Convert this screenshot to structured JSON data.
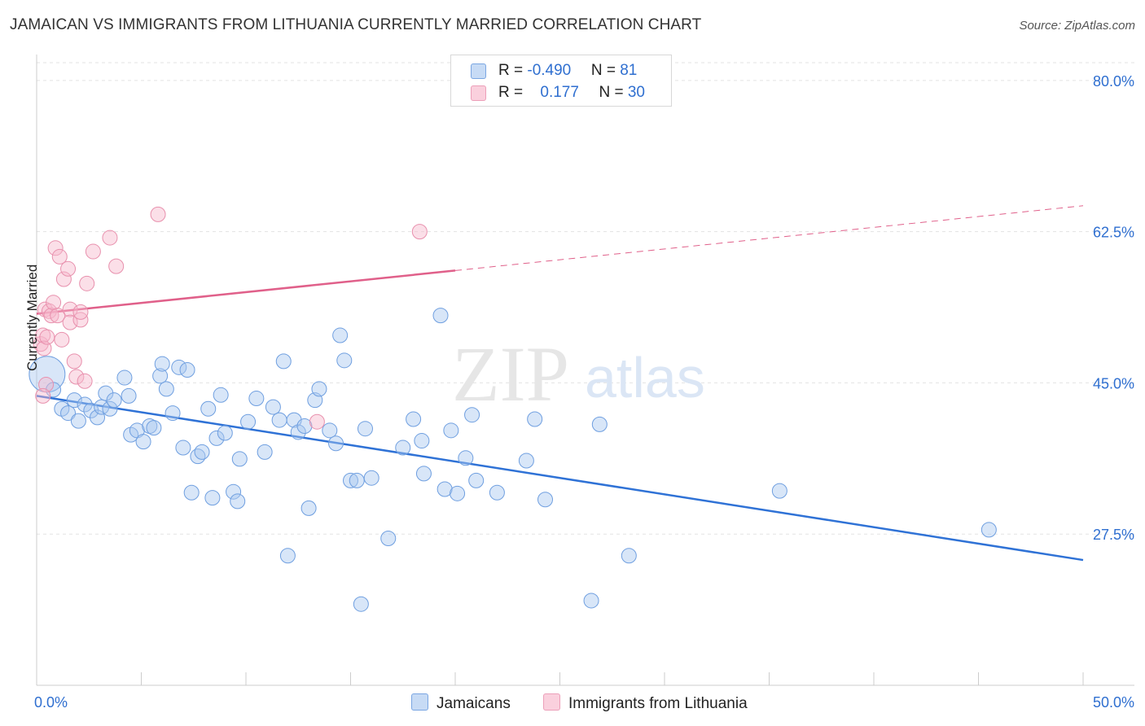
{
  "title": "JAMAICAN VS IMMIGRANTS FROM LITHUANIA CURRENTLY MARRIED CORRELATION CHART",
  "source": "Source: ZipAtlas.com",
  "watermark": {
    "zip": "ZIP",
    "atlas": "atlas"
  },
  "legend": {
    "rows": [
      {
        "r_label": "R = ",
        "r_value": "-0.490",
        "n_label": "N = ",
        "n_value": "81",
        "color": "#a9c8f0"
      },
      {
        "r_label": "R = ",
        "r_value": "0.177",
        "n_label": "N = ",
        "n_value": "30",
        "color": "#f6b8cc"
      }
    ]
  },
  "chart_data": {
    "type": "scatter",
    "title": "JAMAICAN VS IMMIGRANTS FROM LITHUANIA CURRENTLY MARRIED CORRELATION CHART",
    "xlabel": "",
    "ylabel": "Currently Married",
    "xlim": [
      0,
      50
    ],
    "ylim": [
      10,
      83
    ],
    "x_tick_labels": [
      "0.0%",
      "50.0%"
    ],
    "y_ticks": [
      27.5,
      45.0,
      62.5,
      80.0
    ],
    "y_tick_labels": [
      "27.5%",
      "45.0%",
      "62.5%",
      "80.0%"
    ],
    "grid": "horizontal dashed",
    "legend_position": "top-center",
    "series": [
      {
        "name": "Jamaicans",
        "color": "#a9c8f0",
        "stroke": "#6f9fe0",
        "trend": {
          "x": [
            0,
            50
          ],
          "y": [
            43.5,
            24.5
          ],
          "color": "#2f72d6",
          "dashed_from": null
        },
        "points": [
          [
            0.5,
            46.0
          ],
          [
            0.8,
            44.2
          ],
          [
            1.2,
            42.0
          ],
          [
            1.5,
            41.5
          ],
          [
            1.8,
            43.0
          ],
          [
            2.0,
            40.6
          ],
          [
            2.3,
            42.5
          ],
          [
            2.6,
            41.8
          ],
          [
            2.9,
            41.0
          ],
          [
            3.1,
            42.2
          ],
          [
            3.3,
            43.8
          ],
          [
            3.5,
            42.0
          ],
          [
            3.7,
            43.0
          ],
          [
            4.2,
            45.6
          ],
          [
            4.4,
            43.5
          ],
          [
            4.5,
            39.0
          ],
          [
            4.8,
            39.5
          ],
          [
            5.1,
            38.2
          ],
          [
            5.4,
            40.0
          ],
          [
            5.6,
            39.8
          ],
          [
            5.9,
            45.8
          ],
          [
            6.0,
            47.2
          ],
          [
            6.2,
            44.3
          ],
          [
            6.5,
            41.5
          ],
          [
            6.8,
            46.8
          ],
          [
            7.0,
            37.5
          ],
          [
            7.2,
            46.5
          ],
          [
            7.4,
            32.3
          ],
          [
            7.7,
            36.5
          ],
          [
            7.9,
            37.0
          ],
          [
            8.2,
            42.0
          ],
          [
            8.4,
            31.7
          ],
          [
            8.6,
            38.6
          ],
          [
            8.8,
            43.6
          ],
          [
            9.0,
            39.2
          ],
          [
            9.4,
            32.4
          ],
          [
            9.6,
            31.3
          ],
          [
            9.7,
            36.2
          ],
          [
            10.1,
            40.5
          ],
          [
            10.5,
            43.2
          ],
          [
            10.9,
            37.0
          ],
          [
            11.3,
            42.2
          ],
          [
            11.6,
            40.7
          ],
          [
            11.8,
            47.5
          ],
          [
            12.0,
            25.0
          ],
          [
            12.3,
            40.7
          ],
          [
            12.5,
            39.3
          ],
          [
            12.8,
            40.0
          ],
          [
            13.0,
            30.5
          ],
          [
            13.3,
            43.0
          ],
          [
            13.5,
            44.3
          ],
          [
            14.0,
            39.5
          ],
          [
            14.3,
            38.0
          ],
          [
            14.5,
            50.5
          ],
          [
            14.7,
            47.6
          ],
          [
            15.0,
            33.7
          ],
          [
            15.3,
            33.7
          ],
          [
            15.5,
            19.4
          ],
          [
            15.7,
            39.7
          ],
          [
            16.0,
            34.0
          ],
          [
            16.8,
            27.0
          ],
          [
            17.5,
            37.5
          ],
          [
            18.0,
            40.8
          ],
          [
            18.4,
            38.3
          ],
          [
            18.5,
            34.5
          ],
          [
            19.3,
            52.8
          ],
          [
            19.5,
            32.7
          ],
          [
            19.8,
            39.5
          ],
          [
            20.1,
            32.2
          ],
          [
            20.5,
            36.3
          ],
          [
            20.8,
            41.3
          ],
          [
            21.0,
            33.7
          ],
          [
            22.0,
            32.3
          ],
          [
            23.4,
            36.0
          ],
          [
            23.8,
            40.8
          ],
          [
            24.3,
            31.5
          ],
          [
            26.5,
            19.8
          ],
          [
            26.9,
            40.2
          ],
          [
            28.3,
            25.0
          ],
          [
            35.5,
            32.5
          ],
          [
            45.5,
            28.0
          ]
        ]
      },
      {
        "name": "Immigrants from Lithuania",
        "color": "#f6b8cc",
        "stroke": "#e890ad",
        "trend": {
          "x": [
            0,
            20,
            50
          ],
          "y": [
            53.0,
            58.0,
            65.5
          ],
          "color": "#e0608a",
          "dashed_from": 20
        },
        "points": [
          [
            0.2,
            49.5
          ],
          [
            0.3,
            50.5
          ],
          [
            0.35,
            49.0
          ],
          [
            0.4,
            53.5
          ],
          [
            0.45,
            44.8
          ],
          [
            0.5,
            50.3
          ],
          [
            0.6,
            53.3
          ],
          [
            0.7,
            52.8
          ],
          [
            0.8,
            54.3
          ],
          [
            0.9,
            60.6
          ],
          [
            1.0,
            52.8
          ],
          [
            1.1,
            59.6
          ],
          [
            1.2,
            50.0
          ],
          [
            1.3,
            57.0
          ],
          [
            1.5,
            58.2
          ],
          [
            1.6,
            53.5
          ],
          [
            1.6,
            52.0
          ],
          [
            1.8,
            47.5
          ],
          [
            1.9,
            45.7
          ],
          [
            2.1,
            52.3
          ],
          [
            2.1,
            53.2
          ],
          [
            2.3,
            45.2
          ],
          [
            2.4,
            56.5
          ],
          [
            2.7,
            60.2
          ],
          [
            3.5,
            61.8
          ],
          [
            3.8,
            58.5
          ],
          [
            5.8,
            64.5
          ],
          [
            13.4,
            40.5
          ],
          [
            18.3,
            62.5
          ],
          [
            0.3,
            43.5
          ]
        ]
      }
    ]
  },
  "bottom_legend": {
    "items": [
      {
        "label": "Jamaicans",
        "color": "#a9c8f0"
      },
      {
        "label": "Immigrants from Lithuania",
        "color": "#f6b8cc"
      }
    ]
  }
}
